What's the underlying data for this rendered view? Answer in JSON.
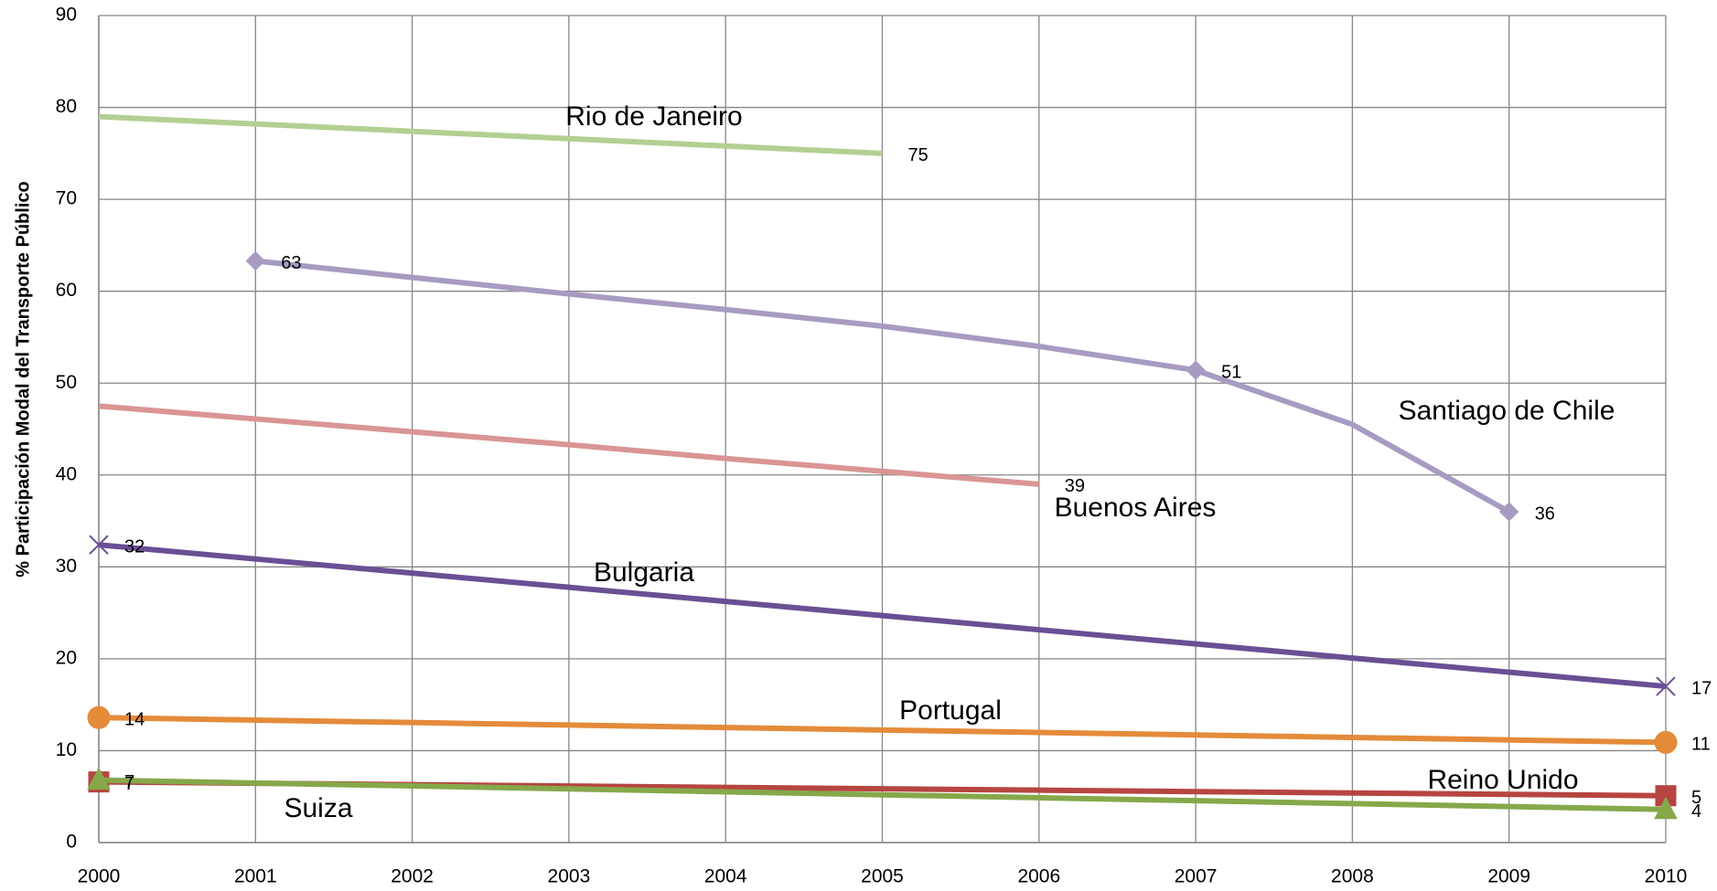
{
  "chart_data": {
    "type": "line",
    "y_label": "% Participación Modal del Transporte Público",
    "x": [
      2000,
      2001,
      2002,
      2003,
      2004,
      2005,
      2006,
      2007,
      2008,
      2009,
      2010
    ],
    "xlim": [
      2000,
      2010
    ],
    "xticks": [
      2000,
      2001,
      2002,
      2003,
      2004,
      2005,
      2006,
      2007,
      2008,
      2009,
      2010
    ],
    "ylim": [
      0,
      90
    ],
    "yticks": [
      0,
      10,
      20,
      30,
      40,
      50,
      60,
      70,
      80,
      90
    ],
    "grid": true,
    "series": [
      {
        "name": "Rio de Janeiro",
        "color": "#b3cf93",
        "marker": "none",
        "values": [
          79,
          78.2,
          77.4,
          76.6,
          75.8,
          75,
          null,
          null,
          null,
          null,
          null
        ],
        "value_labels": [
          null,
          null,
          null,
          null,
          null,
          "75",
          null,
          null,
          null,
          null,
          null
        ]
      },
      {
        "name": "Santiago de Chile",
        "color": "#a79bc2",
        "marker": "diamond",
        "values": [
          null,
          63.3,
          61.5,
          59.7,
          58,
          56.2,
          54,
          51.4,
          45.5,
          36,
          null
        ],
        "value_labels": [
          null,
          "63",
          null,
          null,
          null,
          null,
          null,
          "51",
          null,
          "36",
          null
        ]
      },
      {
        "name": "Buenos Aires",
        "color": "#d99594",
        "marker": "none",
        "values": [
          47.5,
          46.1,
          44.7,
          43.3,
          41.8,
          40.4,
          39,
          null,
          null,
          null,
          null
        ],
        "value_labels": [
          null,
          null,
          null,
          null,
          null,
          null,
          "39",
          null,
          null,
          null,
          null
        ]
      },
      {
        "name": "Bulgaria",
        "color": "#6a4f94",
        "marker": "x",
        "values": [
          32.4,
          30.86,
          29.32,
          27.78,
          26.24,
          24.7,
          23.16,
          21.62,
          20.08,
          18.54,
          17
        ],
        "value_labels": [
          "32",
          null,
          null,
          null,
          null,
          null,
          null,
          null,
          null,
          null,
          "17"
        ]
      },
      {
        "name": "Portugal",
        "color": "#e48b3a",
        "marker": "circle",
        "values": [
          13.6,
          13.33,
          13.06,
          12.79,
          12.52,
          12.25,
          11.98,
          11.71,
          11.44,
          11.17,
          10.9
        ],
        "value_labels": [
          "14",
          null,
          null,
          null,
          null,
          null,
          null,
          null,
          null,
          null,
          "11"
        ]
      },
      {
        "name": "Reino Unido",
        "color": "#b64541",
        "marker": "square",
        "values": [
          6.6,
          6.45,
          6.3,
          6.15,
          6.0,
          5.85,
          5.7,
          5.55,
          5.4,
          5.25,
          5.1
        ],
        "value_labels": [
          "7",
          null,
          null,
          null,
          null,
          null,
          null,
          null,
          null,
          null,
          "5"
        ]
      },
      {
        "name": "Suiza",
        "color": "#86a84b",
        "marker": "triangle",
        "values": [
          6.8,
          6.48,
          6.16,
          5.84,
          5.52,
          5.2,
          4.88,
          4.56,
          4.24,
          3.92,
          3.6
        ],
        "value_labels": [
          "7",
          null,
          null,
          null,
          null,
          null,
          null,
          null,
          null,
          null,
          "4"
        ]
      }
    ]
  }
}
